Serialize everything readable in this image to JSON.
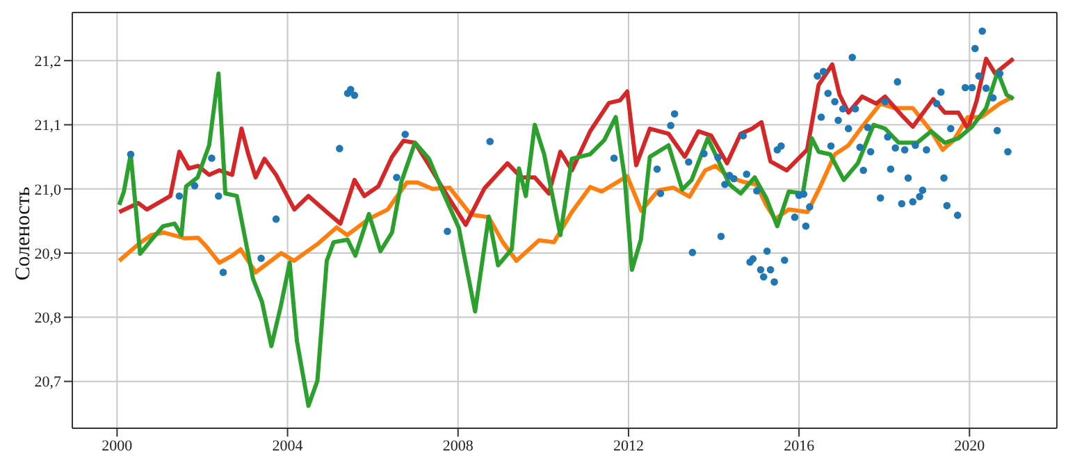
{
  "chart_data": {
    "type": "line",
    "ylabel": "Соленость",
    "xlim": [
      1998.95,
      2022.05
    ],
    "xticks": [
      2000,
      2004,
      2008,
      2012,
      2016,
      2020
    ],
    "ylim": [
      20.627,
      21.275
    ],
    "yticks": [
      {
        "value": 20.7,
        "label": "20,7"
      },
      {
        "value": 20.8,
        "label": "20,8"
      },
      {
        "value": 20.9,
        "label": "20,9"
      },
      {
        "value": 21.0,
        "label": "21,0"
      },
      {
        "value": 21.1,
        "label": "21,1"
      },
      {
        "value": 21.2,
        "label": "21,2"
      }
    ],
    "grid": true,
    "series": [
      {
        "type": "scatter",
        "color": "#1f77b4",
        "x": [
          2000.32,
          2001.46,
          2001.82,
          2002.22,
          2002.38,
          2002.49,
          2003.38,
          2003.73,
          2005.22,
          2005.41,
          2005.48,
          2005.57,
          2006.56,
          2006.76,
          2007.75,
          2008.75,
          2011.66,
          2012.67,
          2012.75,
          2012.99,
          2013.08,
          2013.41,
          2013.5,
          2013.77,
          2014.1,
          2014.17,
          2014.26,
          2014.37,
          2014.47,
          2014.69,
          2014.77,
          2014.85,
          2014.92,
          2015.01,
          2015.1,
          2015.17,
          2015.25,
          2015.33,
          2015.42,
          2015.49,
          2015.58,
          2015.66,
          2015.9,
          2016.0,
          2016.11,
          2016.16,
          2016.25,
          2016.43,
          2016.52,
          2016.57,
          2016.68,
          2016.75,
          2016.84,
          2016.92,
          2017.03,
          2017.16,
          2017.25,
          2017.32,
          2017.43,
          2017.51,
          2017.61,
          2017.68,
          2017.91,
          2018.02,
          2018.08,
          2018.15,
          2018.26,
          2018.31,
          2018.41,
          2018.48,
          2018.56,
          2018.67,
          2018.73,
          2018.83,
          2018.9,
          2018.99,
          2019.23,
          2019.33,
          2019.4,
          2019.47,
          2019.56,
          2019.72,
          2019.9,
          2020.06,
          2020.13,
          2020.22,
          2020.3,
          2020.39,
          2020.55,
          2020.65,
          2020.71,
          2020.9
        ],
        "values": [
          21.054,
          20.989,
          21.005,
          21.048,
          20.989,
          20.87,
          20.892,
          20.953,
          21.063,
          21.149,
          21.155,
          21.146,
          21.018,
          21.085,
          20.934,
          21.074,
          21.048,
          21.031,
          20.993,
          21.099,
          21.117,
          21.042,
          20.901,
          21.055,
          21.049,
          20.926,
          21.007,
          21.021,
          21.016,
          21.083,
          21.023,
          20.886,
          20.891,
          20.997,
          20.874,
          20.863,
          20.903,
          20.874,
          20.855,
          21.061,
          21.067,
          20.889,
          20.956,
          20.99,
          20.992,
          20.942,
          20.972,
          21.176,
          21.112,
          21.183,
          21.149,
          21.067,
          21.136,
          21.107,
          21.125,
          21.094,
          21.205,
          21.125,
          21.065,
          21.029,
          21.096,
          21.058,
          20.986,
          21.136,
          21.081,
          21.031,
          21.064,
          21.167,
          20.977,
          21.061,
          21.017,
          20.98,
          21.068,
          20.988,
          20.998,
          21.061,
          21.133,
          21.151,
          21.017,
          20.974,
          21.094,
          20.959,
          21.158,
          21.158,
          21.219,
          21.176,
          21.246,
          21.157,
          21.142,
          21.091,
          21.18,
          21.058
        ]
      },
      {
        "color": "#ff7f0e",
        "x": [
          2000.05,
          2000.5,
          2000.8,
          2001.1,
          2001.6,
          2001.9,
          2002.1,
          2002.4,
          2002.7,
          2002.9,
          2003.25,
          2003.85,
          2004.15,
          2004.7,
          2005.15,
          2005.4,
          2005.9,
          2006.35,
          2006.8,
          2007.05,
          2007.4,
          2007.8,
          2008.3,
          2008.72,
          2009.05,
          2009.37,
          2009.9,
          2010.25,
          2010.67,
          2011.1,
          2011.37,
          2011.97,
          2012.3,
          2012.7,
          2013.05,
          2013.43,
          2013.8,
          2014.04,
          2014.37,
          2014.7,
          2015.0,
          2015.23,
          2015.44,
          2015.76,
          2016.2,
          2016.5,
          2016.84,
          2017.16,
          2017.48,
          2017.91,
          2018.24,
          2018.67,
          2019.1,
          2019.37,
          2019.63,
          2019.96,
          2020.28,
          2020.71,
          2021.03
        ],
        "values": [
          20.888,
          20.914,
          20.928,
          20.932,
          20.923,
          20.924,
          20.91,
          20.885,
          20.896,
          20.906,
          20.87,
          20.9,
          20.888,
          20.914,
          20.94,
          20.928,
          20.953,
          20.968,
          21.01,
          21.01,
          21.0,
          21.002,
          20.96,
          20.956,
          20.917,
          20.888,
          20.92,
          20.917,
          20.964,
          21.003,
          20.996,
          21.02,
          20.966,
          20.998,
          21.002,
          20.988,
          21.029,
          21.036,
          21.018,
          21.011,
          21.007,
          20.975,
          20.953,
          20.968,
          20.964,
          21.004,
          21.054,
          21.068,
          21.097,
          21.133,
          21.126,
          21.126,
          21.09,
          21.061,
          21.076,
          21.112,
          21.112,
          21.133,
          21.144
        ]
      },
      {
        "color": "#d62728",
        "x": [
          2000.05,
          2000.5,
          2000.7,
          2001.25,
          2001.46,
          2001.68,
          2001.9,
          2002.16,
          2002.4,
          2002.7,
          2002.92,
          2003.08,
          2003.25,
          2003.46,
          2003.73,
          2004.16,
          2004.49,
          2004.92,
          2005.24,
          2005.57,
          2005.8,
          2006.13,
          2006.45,
          2006.72,
          2006.99,
          2007.32,
          2007.64,
          2008.18,
          2008.62,
          2009.16,
          2009.48,
          2009.8,
          2010.13,
          2010.4,
          2010.67,
          2011.1,
          2011.54,
          2011.8,
          2011.97,
          2012.18,
          2012.5,
          2012.94,
          2013.32,
          2013.64,
          2013.94,
          2014.31,
          2014.63,
          2014.9,
          2015.12,
          2015.33,
          2015.71,
          2016.19,
          2016.46,
          2016.78,
          2016.95,
          2017.16,
          2017.48,
          2017.81,
          2018.02,
          2018.45,
          2018.67,
          2019.15,
          2019.42,
          2019.74,
          2019.96,
          2020.17,
          2020.39,
          2020.6,
          2021.03
        ],
        "values": [
          20.964,
          20.978,
          20.968,
          20.989,
          21.058,
          21.032,
          21.036,
          21.022,
          21.029,
          21.022,
          21.094,
          21.054,
          21.018,
          21.047,
          21.022,
          20.968,
          20.989,
          20.964,
          20.946,
          21.014,
          20.989,
          21.004,
          21.05,
          21.075,
          21.072,
          21.037,
          21.001,
          20.944,
          21.001,
          21.04,
          21.018,
          21.018,
          20.993,
          21.058,
          21.029,
          21.09,
          21.134,
          21.138,
          21.152,
          21.037,
          21.094,
          21.086,
          21.05,
          21.09,
          21.083,
          21.04,
          21.086,
          21.094,
          21.104,
          21.043,
          21.029,
          21.061,
          21.162,
          21.194,
          21.147,
          21.119,
          21.144,
          21.133,
          21.144,
          21.112,
          21.097,
          21.14,
          21.119,
          21.119,
          21.094,
          21.138,
          21.203,
          21.18,
          21.203
        ]
      },
      {
        "color": "#2ca02c",
        "x": [
          2000.05,
          2000.16,
          2000.32,
          2000.54,
          2000.81,
          2001.08,
          2001.35,
          2001.51,
          2001.62,
          2001.89,
          2002.16,
          2002.38,
          2002.54,
          2002.81,
          2003.19,
          2003.4,
          2003.62,
          2003.84,
          2004.05,
          2004.22,
          2004.49,
          2004.7,
          2004.92,
          2005.08,
          2005.41,
          2005.59,
          2005.91,
          2006.18,
          2006.45,
          2006.67,
          2006.99,
          2007.32,
          2007.64,
          2008.02,
          2008.4,
          2008.72,
          2008.94,
          2009.26,
          2009.43,
          2009.59,
          2009.8,
          2010.02,
          2010.4,
          2010.67,
          2011.1,
          2011.43,
          2011.7,
          2011.91,
          2012.08,
          2012.29,
          2012.5,
          2012.94,
          2013.26,
          2013.48,
          2013.86,
          2014.37,
          2014.63,
          2014.96,
          2015.23,
          2015.49,
          2015.76,
          2016.09,
          2016.3,
          2016.46,
          2016.73,
          2017.05,
          2017.38,
          2017.75,
          2018.02,
          2018.34,
          2018.77,
          2019.1,
          2019.42,
          2019.74,
          2020.06,
          2020.39,
          2020.66,
          2020.87,
          2021.03
        ],
        "values": [
          20.975,
          20.996,
          21.054,
          20.899,
          20.921,
          20.942,
          20.946,
          20.928,
          21.004,
          21.018,
          21.068,
          21.18,
          20.993,
          20.989,
          20.86,
          20.824,
          20.755,
          20.817,
          20.885,
          20.763,
          20.662,
          20.701,
          20.888,
          20.917,
          20.921,
          20.896,
          20.961,
          20.903,
          20.932,
          21.011,
          21.072,
          21.047,
          20.996,
          20.939,
          20.809,
          20.957,
          20.881,
          20.906,
          21.032,
          20.989,
          21.1,
          21.054,
          20.928,
          21.047,
          21.054,
          21.076,
          21.112,
          21.018,
          20.874,
          20.921,
          21.05,
          21.068,
          20.999,
          21.014,
          21.079,
          21.007,
          20.993,
          21.018,
          20.986,
          20.942,
          20.996,
          20.993,
          21.079,
          21.058,
          21.054,
          21.014,
          21.04,
          21.1,
          21.094,
          21.072,
          21.072,
          21.09,
          21.072,
          21.079,
          21.097,
          21.126,
          21.183,
          21.147,
          21.14
        ]
      }
    ]
  }
}
